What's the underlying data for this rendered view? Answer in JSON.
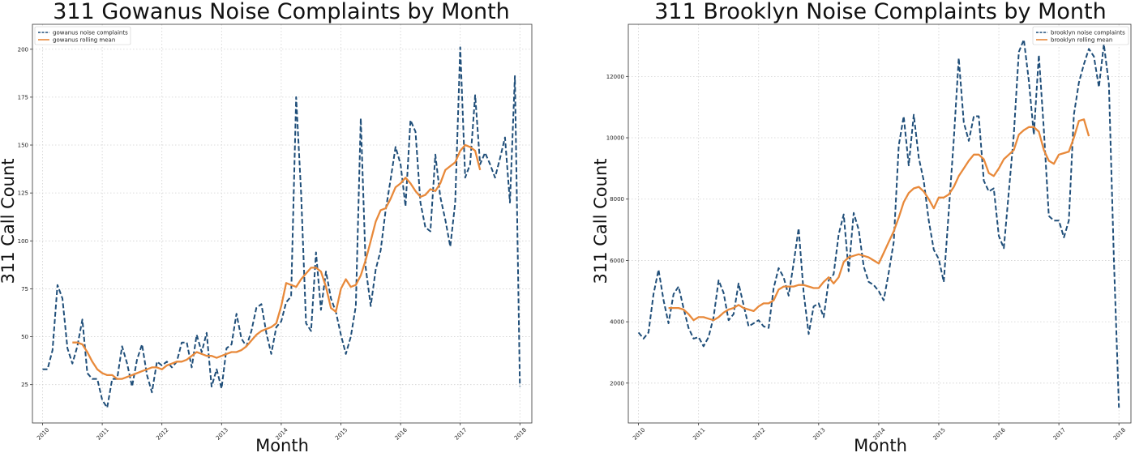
{
  "chart_data": [
    {
      "type": "line",
      "title": "311 Gowanus Noise Complaints by Month",
      "xlabel": "Month",
      "ylabel": "311 Call Count",
      "xlim": [
        2009.83,
        2018.2
      ],
      "ylim": [
        5,
        213
      ],
      "yticks": [
        25,
        50,
        75,
        100,
        125,
        150,
        175,
        200
      ],
      "xticks": [
        "2010",
        "2011",
        "2012",
        "2013",
        "2014",
        "2015",
        "2016",
        "2017",
        "2018"
      ],
      "grid": true,
      "legend_position": "upper-left",
      "colors": {
        "series1": "#1f4e79",
        "series2": "#e8893a"
      },
      "series": [
        {
          "name": "gowanus noise complaints",
          "style": "dashed",
          "x_start": 2010.0,
          "x_step": 0.08333,
          "values": [
            33,
            33,
            43,
            77,
            70,
            44,
            36,
            45,
            59,
            31,
            28,
            28,
            17,
            13,
            28,
            28,
            45,
            36,
            24,
            38,
            46,
            30,
            21,
            37,
            35,
            37,
            34,
            37,
            47,
            47,
            34,
            51,
            42,
            52,
            24,
            33,
            23,
            44,
            46,
            62,
            49,
            45,
            53,
            65,
            67,
            52,
            41,
            55,
            58,
            68,
            71,
            175,
            125,
            57,
            53,
            94,
            64,
            84,
            70,
            63,
            51,
            41,
            50,
            66,
            164,
            86,
            66,
            85,
            95,
            116,
            132,
            149,
            140,
            118,
            163,
            157,
            120,
            107,
            105,
            145,
            123,
            111,
            97,
            120,
            201,
            133,
            140,
            176,
            140,
            146,
            140,
            133,
            143,
            154,
            120,
            186,
            24
          ],
          "mean_style": "solid"
        },
        {
          "name": "gowanus rolling mean",
          "style": "solid",
          "x_start": 2010.5,
          "x_step": 0.08333,
          "values": [
            47,
            47,
            46,
            42,
            37,
            33,
            31,
            30,
            30,
            28,
            28,
            29,
            30,
            31,
            32,
            33,
            34,
            34,
            33,
            35,
            36,
            37,
            37,
            38,
            40,
            42,
            41,
            40,
            40,
            39,
            40,
            41,
            42,
            42,
            43,
            45,
            48,
            51,
            53,
            54,
            55,
            57,
            66,
            78,
            77,
            76,
            80,
            83,
            86,
            86,
            84,
            76,
            65,
            63,
            75,
            80,
            76,
            77,
            82,
            90,
            100,
            110,
            116,
            117,
            122,
            128,
            130,
            133,
            130,
            126,
            123,
            124,
            127,
            126,
            130,
            137,
            139,
            141,
            147,
            150,
            149,
            147,
            137
          ]
        }
      ]
    },
    {
      "type": "line",
      "title": "311 Brooklyn Noise Complaints by Month",
      "xlabel": "Month",
      "ylabel": "311 Call Count",
      "xlim": [
        2009.83,
        2018.2
      ],
      "ylim": [
        700,
        13700
      ],
      "yticks": [
        2000,
        4000,
        6000,
        8000,
        10000,
        12000
      ],
      "xticks": [
        "2010",
        "2011",
        "2012",
        "2013",
        "2014",
        "2015",
        "2016",
        "2017",
        "2018"
      ],
      "grid": true,
      "legend_position": "upper-right",
      "colors": {
        "series1": "#1f4e79",
        "series2": "#e8893a"
      },
      "series": [
        {
          "name": "brooklyn noise complaints",
          "style": "dashed",
          "x_start": 2010.0,
          "x_step": 0.08333,
          "values": [
            3650,
            3450,
            3650,
            4900,
            5700,
            4700,
            3950,
            4900,
            5150,
            4450,
            3800,
            3450,
            3500,
            3200,
            3500,
            4150,
            5350,
            4950,
            4050,
            4250,
            5250,
            4550,
            3850,
            3950,
            4050,
            3850,
            3800,
            5100,
            5750,
            5450,
            4850,
            5900,
            7050,
            4950,
            3600,
            4500,
            4600,
            4150,
            5350,
            5550,
            6850,
            7500,
            5650,
            7550,
            7000,
            5800,
            5300,
            5200,
            5000,
            4700,
            5600,
            6600,
            9750,
            10700,
            9100,
            10750,
            9350,
            8600,
            7300,
            6350,
            6050,
            5300,
            7600,
            9950,
            12600,
            10500,
            9900,
            10700,
            10700,
            8600,
            8250,
            8350,
            6800,
            6400,
            8250,
            10100,
            12800,
            13200,
            11850,
            10100,
            12700,
            10250,
            7450,
            7300,
            7300,
            6750,
            7300,
            10750,
            11800,
            12400,
            12900,
            12650,
            11650,
            13050,
            11750,
            6000,
            1200
          ],
          "mean_style": "solid"
        },
        {
          "name": "brooklyn rolling mean",
          "style": "solid",
          "x_start": 2010.5,
          "x_step": 0.08333,
          "values": [
            4450,
            4450,
            4450,
            4400,
            4250,
            4050,
            4150,
            4150,
            4100,
            4050,
            4150,
            4300,
            4400,
            4450,
            4550,
            4450,
            4400,
            4350,
            4500,
            4600,
            4600,
            4700,
            5050,
            5150,
            5150,
            5150,
            5200,
            5200,
            5150,
            5100,
            5100,
            5300,
            5450,
            5250,
            5450,
            5950,
            6100,
            6150,
            6200,
            6150,
            6100,
            6000,
            5900,
            6250,
            6600,
            6950,
            7400,
            7900,
            8200,
            8350,
            8400,
            8250,
            8000,
            7700,
            8050,
            8050,
            8150,
            8400,
            8750,
            9000,
            9250,
            9450,
            9450,
            9300,
            8850,
            8750,
            9000,
            9300,
            9450,
            9600,
            10100,
            10250,
            10350,
            10350,
            10200,
            9600,
            9250,
            9150,
            9450,
            9500,
            9550,
            10000,
            10550,
            10600,
            10050
          ]
        }
      ]
    }
  ]
}
